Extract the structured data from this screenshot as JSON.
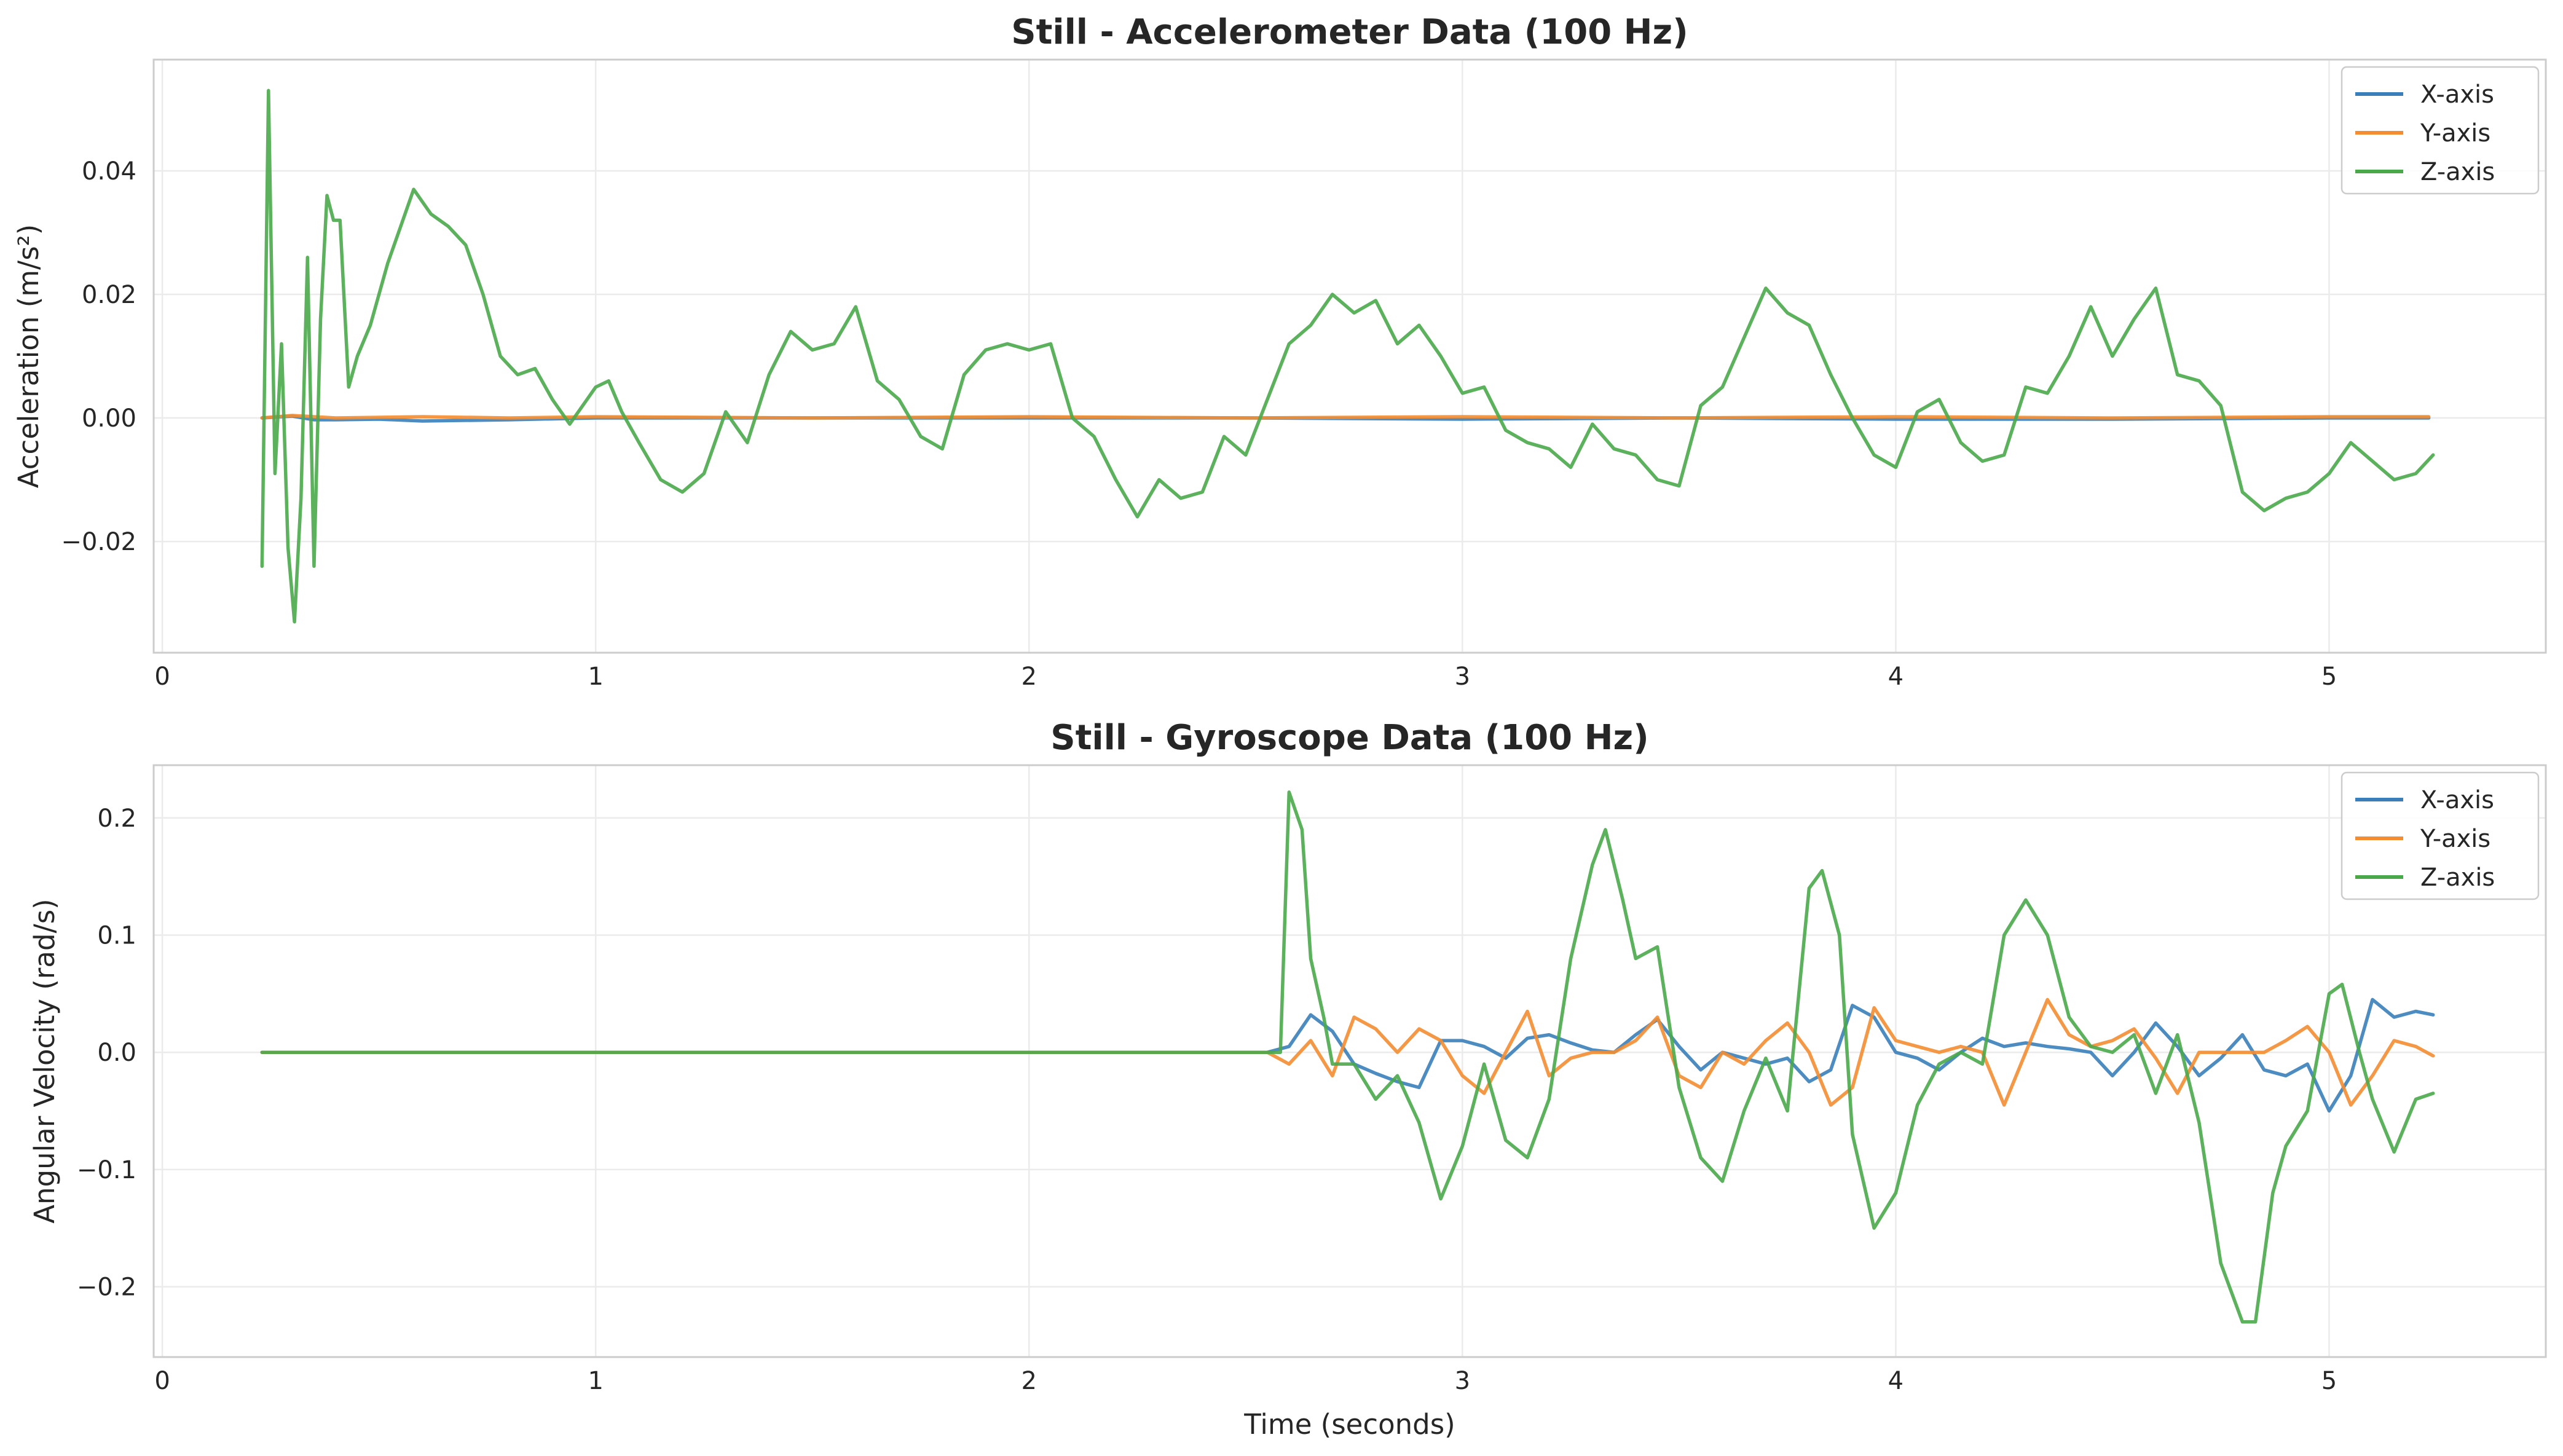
{
  "chart_data": [
    {
      "type": "line",
      "title": "Still - Accelerometer Data (100 Hz)",
      "xlabel": "",
      "ylabel": "Acceleration (m/s²)",
      "xlim": [
        -0.02,
        5.5
      ],
      "ylim": [
        -0.038,
        0.058
      ],
      "xticks": [
        0,
        1,
        2,
        3,
        4,
        5
      ],
      "xtick_labels": [
        "0",
        "1",
        "2",
        "3",
        "4",
        "5"
      ],
      "yticks": [
        -0.02,
        0.0,
        0.02,
        0.04
      ],
      "ytick_labels": [
        "−0.02",
        "0.00",
        "0.02",
        "0.04"
      ],
      "grid": true,
      "legend_position": "top-right",
      "series": [
        {
          "name": "X-axis",
          "color": "#3a7fb9",
          "x": [
            0.23,
            0.3,
            0.35,
            0.4,
            0.5,
            0.6,
            0.8,
            1.0,
            1.5,
            2.0,
            2.5,
            3.0,
            3.5,
            4.0,
            4.5,
            5.0,
            5.23
          ],
          "y": [
            0.0,
            0.0003,
            -0.0003,
            -0.0003,
            -0.0002,
            -0.0005,
            -0.0003,
            0.0,
            0.0,
            0.0,
            0.0,
            -0.0002,
            0.0,
            -0.0002,
            -0.0002,
            0.0,
            0.0
          ]
        },
        {
          "name": "Y-axis",
          "color": "#f48d32",
          "x": [
            0.23,
            0.3,
            0.4,
            0.6,
            0.8,
            1.0,
            1.5,
            2.0,
            2.5,
            3.0,
            3.5,
            4.0,
            4.5,
            5.0,
            5.23
          ],
          "y": [
            0.0,
            0.0004,
            0.0,
            0.0002,
            0.0,
            0.0002,
            0.0,
            0.0002,
            0.0,
            0.0002,
            0.0,
            0.0002,
            0.0,
            0.0002,
            0.0002
          ]
        },
        {
          "name": "Z-axis",
          "color": "#4aa84b",
          "x": [
            0.23,
            0.245,
            0.26,
            0.275,
            0.29,
            0.305,
            0.32,
            0.335,
            0.35,
            0.365,
            0.38,
            0.395,
            0.41,
            0.43,
            0.45,
            0.48,
            0.52,
            0.55,
            0.58,
            0.62,
            0.66,
            0.7,
            0.74,
            0.78,
            0.82,
            0.86,
            0.9,
            0.94,
            0.98,
            1.0,
            1.03,
            1.06,
            1.1,
            1.15,
            1.2,
            1.25,
            1.3,
            1.35,
            1.4,
            1.45,
            1.5,
            1.55,
            1.6,
            1.65,
            1.7,
            1.75,
            1.8,
            1.85,
            1.9,
            1.95,
            2.0,
            2.05,
            2.1,
            2.15,
            2.2,
            2.25,
            2.3,
            2.35,
            2.4,
            2.45,
            2.5,
            2.55,
            2.6,
            2.65,
            2.7,
            2.75,
            2.8,
            2.85,
            2.9,
            2.95,
            3.0,
            3.05,
            3.1,
            3.15,
            3.2,
            3.25,
            3.3,
            3.35,
            3.4,
            3.45,
            3.5,
            3.55,
            3.6,
            3.65,
            3.7,
            3.75,
            3.8,
            3.85,
            3.9,
            3.95,
            4.0,
            4.05,
            4.1,
            4.15,
            4.2,
            4.25,
            4.3,
            4.35,
            4.4,
            4.45,
            4.5,
            4.55,
            4.6,
            4.65,
            4.7,
            4.75,
            4.8,
            4.85,
            4.9,
            4.95,
            5.0,
            5.05,
            5.1,
            5.15,
            5.2,
            5.24
          ],
          "y": [
            -0.024,
            0.053,
            -0.009,
            0.012,
            -0.021,
            -0.033,
            -0.013,
            0.026,
            -0.024,
            0.016,
            0.036,
            0.032,
            0.032,
            0.005,
            0.01,
            0.015,
            0.025,
            0.031,
            0.037,
            0.033,
            0.031,
            0.028,
            0.02,
            0.01,
            0.007,
            0.008,
            0.003,
            -0.001,
            0.003,
            0.005,
            0.006,
            0.001,
            -0.004,
            -0.01,
            -0.012,
            -0.009,
            0.001,
            -0.004,
            0.007,
            0.014,
            0.011,
            0.012,
            0.018,
            0.006,
            0.003,
            -0.003,
            -0.005,
            0.007,
            0.011,
            0.012,
            0.011,
            0.012,
            0.0,
            -0.003,
            -0.01,
            -0.016,
            -0.01,
            -0.013,
            -0.012,
            -0.003,
            -0.006,
            0.003,
            0.012,
            0.015,
            0.02,
            0.017,
            0.019,
            0.012,
            0.015,
            0.01,
            0.004,
            0.005,
            -0.002,
            -0.004,
            -0.005,
            -0.008,
            -0.001,
            -0.005,
            -0.006,
            -0.01,
            -0.011,
            0.002,
            0.005,
            0.013,
            0.021,
            0.017,
            0.015,
            0.007,
            0.0,
            -0.006,
            -0.008,
            0.001,
            0.003,
            -0.004,
            -0.007,
            -0.006,
            0.005,
            0.004,
            0.01,
            0.018,
            0.01,
            0.016,
            0.021,
            0.007,
            0.006,
            0.002,
            -0.012,
            -0.015,
            -0.013,
            -0.012,
            -0.009,
            -0.004,
            -0.007,
            -0.01,
            -0.009,
            -0.006
          ]
        }
      ]
    },
    {
      "type": "line",
      "title": "Still - Gyroscope Data (100 Hz)",
      "xlabel": "Time (seconds)",
      "ylabel": "Angular Velocity (rad/s)",
      "xlim": [
        -0.02,
        5.5
      ],
      "ylim": [
        -0.26,
        0.245
      ],
      "xticks": [
        0,
        1,
        2,
        3,
        4,
        5
      ],
      "xtick_labels": [
        "0",
        "1",
        "2",
        "3",
        "4",
        "5"
      ],
      "yticks": [
        -0.2,
        -0.1,
        0.0,
        0.1,
        0.2
      ],
      "ytick_labels": [
        "−0.2",
        "−0.1",
        "0.0",
        "0.1",
        "0.2"
      ],
      "grid": true,
      "legend_position": "top-right",
      "series": [
        {
          "name": "X-axis",
          "color": "#3a7fb9",
          "x": [
            0.23,
            2.55,
            2.6,
            2.65,
            2.7,
            2.75,
            2.8,
            2.85,
            2.9,
            2.95,
            3.0,
            3.05,
            3.1,
            3.15,
            3.2,
            3.25,
            3.3,
            3.35,
            3.4,
            3.45,
            3.5,
            3.55,
            3.6,
            3.65,
            3.7,
            3.75,
            3.8,
            3.85,
            3.9,
            3.95,
            4.0,
            4.05,
            4.1,
            4.15,
            4.2,
            4.25,
            4.3,
            4.35,
            4.4,
            4.45,
            4.5,
            4.55,
            4.6,
            4.65,
            4.7,
            4.75,
            4.8,
            4.85,
            4.9,
            4.95,
            5.0,
            5.05,
            5.1,
            5.15,
            5.2,
            5.24
          ],
          "y": [
            0.0,
            0.0,
            0.005,
            0.032,
            0.018,
            -0.01,
            -0.018,
            -0.025,
            -0.03,
            0.01,
            0.01,
            0.005,
            -0.005,
            0.012,
            0.015,
            0.008,
            0.002,
            0.0,
            0.015,
            0.028,
            0.005,
            -0.015,
            0.0,
            -0.005,
            -0.01,
            -0.005,
            -0.025,
            -0.015,
            0.04,
            0.03,
            0.0,
            -0.005,
            -0.015,
            0.0,
            0.012,
            0.005,
            0.008,
            0.005,
            0.003,
            0.0,
            -0.02,
            0.0,
            0.025,
            0.005,
            -0.02,
            -0.005,
            0.015,
            -0.015,
            -0.02,
            -0.01,
            -0.05,
            -0.02,
            0.045,
            0.03,
            0.035,
            0.032
          ]
        },
        {
          "name": "Y-axis",
          "color": "#f48d32",
          "x": [
            0.23,
            2.55,
            2.6,
            2.65,
            2.7,
            2.75,
            2.8,
            2.85,
            2.9,
            2.95,
            3.0,
            3.05,
            3.1,
            3.15,
            3.2,
            3.25,
            3.3,
            3.35,
            3.4,
            3.45,
            3.5,
            3.55,
            3.6,
            3.65,
            3.7,
            3.75,
            3.8,
            3.85,
            3.9,
            3.95,
            4.0,
            4.05,
            4.1,
            4.15,
            4.2,
            4.25,
            4.3,
            4.35,
            4.4,
            4.45,
            4.5,
            4.55,
            4.6,
            4.65,
            4.7,
            4.75,
            4.8,
            4.85,
            4.9,
            4.95,
            5.0,
            5.05,
            5.1,
            5.15,
            5.2,
            5.24
          ],
          "y": [
            0.0,
            0.0,
            -0.01,
            0.01,
            -0.02,
            0.03,
            0.02,
            0.0,
            0.02,
            0.01,
            -0.02,
            -0.035,
            0.0,
            0.035,
            -0.02,
            -0.005,
            0.0,
            0.0,
            0.01,
            0.03,
            -0.02,
            -0.03,
            0.0,
            -0.01,
            0.01,
            0.025,
            0.0,
            -0.045,
            -0.03,
            0.038,
            0.01,
            0.005,
            0.0,
            0.005,
            0.0,
            -0.045,
            0.0,
            0.045,
            0.015,
            0.005,
            0.01,
            0.02,
            -0.005,
            -0.035,
            0.0,
            0.0,
            0.0,
            0.0,
            0.01,
            0.022,
            0.0,
            -0.045,
            -0.02,
            0.01,
            0.005,
            -0.003
          ]
        },
        {
          "name": "Z-axis",
          "color": "#4aa84b",
          "x": [
            0.23,
            2.57,
            2.58,
            2.6,
            2.63,
            2.65,
            2.68,
            2.7,
            2.75,
            2.8,
            2.85,
            2.9,
            2.95,
            3.0,
            3.05,
            3.1,
            3.15,
            3.2,
            3.25,
            3.3,
            3.33,
            3.37,
            3.4,
            3.45,
            3.5,
            3.55,
            3.6,
            3.65,
            3.7,
            3.75,
            3.8,
            3.83,
            3.87,
            3.9,
            3.95,
            4.0,
            4.05,
            4.1,
            4.15,
            4.2,
            4.25,
            4.3,
            4.35,
            4.4,
            4.45,
            4.5,
            4.55,
            4.6,
            4.65,
            4.7,
            4.75,
            4.8,
            4.83,
            4.87,
            4.9,
            4.95,
            5.0,
            5.03,
            5.07,
            5.1,
            5.15,
            5.2,
            5.24
          ],
          "y": [
            0.0,
            0.0,
            0.0,
            0.222,
            0.19,
            0.08,
            0.03,
            -0.01,
            -0.01,
            -0.04,
            -0.02,
            -0.06,
            -0.125,
            -0.08,
            -0.01,
            -0.075,
            -0.09,
            -0.04,
            0.08,
            0.16,
            0.19,
            0.13,
            0.08,
            0.09,
            -0.03,
            -0.09,
            -0.11,
            -0.05,
            -0.005,
            -0.05,
            0.14,
            0.155,
            0.1,
            -0.07,
            -0.15,
            -0.12,
            -0.045,
            -0.01,
            0.0,
            -0.01,
            0.1,
            0.13,
            0.1,
            0.03,
            0.005,
            0.0,
            0.015,
            -0.035,
            0.015,
            -0.06,
            -0.18,
            -0.23,
            -0.23,
            -0.12,
            -0.08,
            -0.05,
            0.05,
            0.058,
            0.0,
            -0.04,
            -0.085,
            -0.04,
            -0.035
          ]
        }
      ]
    }
  ]
}
